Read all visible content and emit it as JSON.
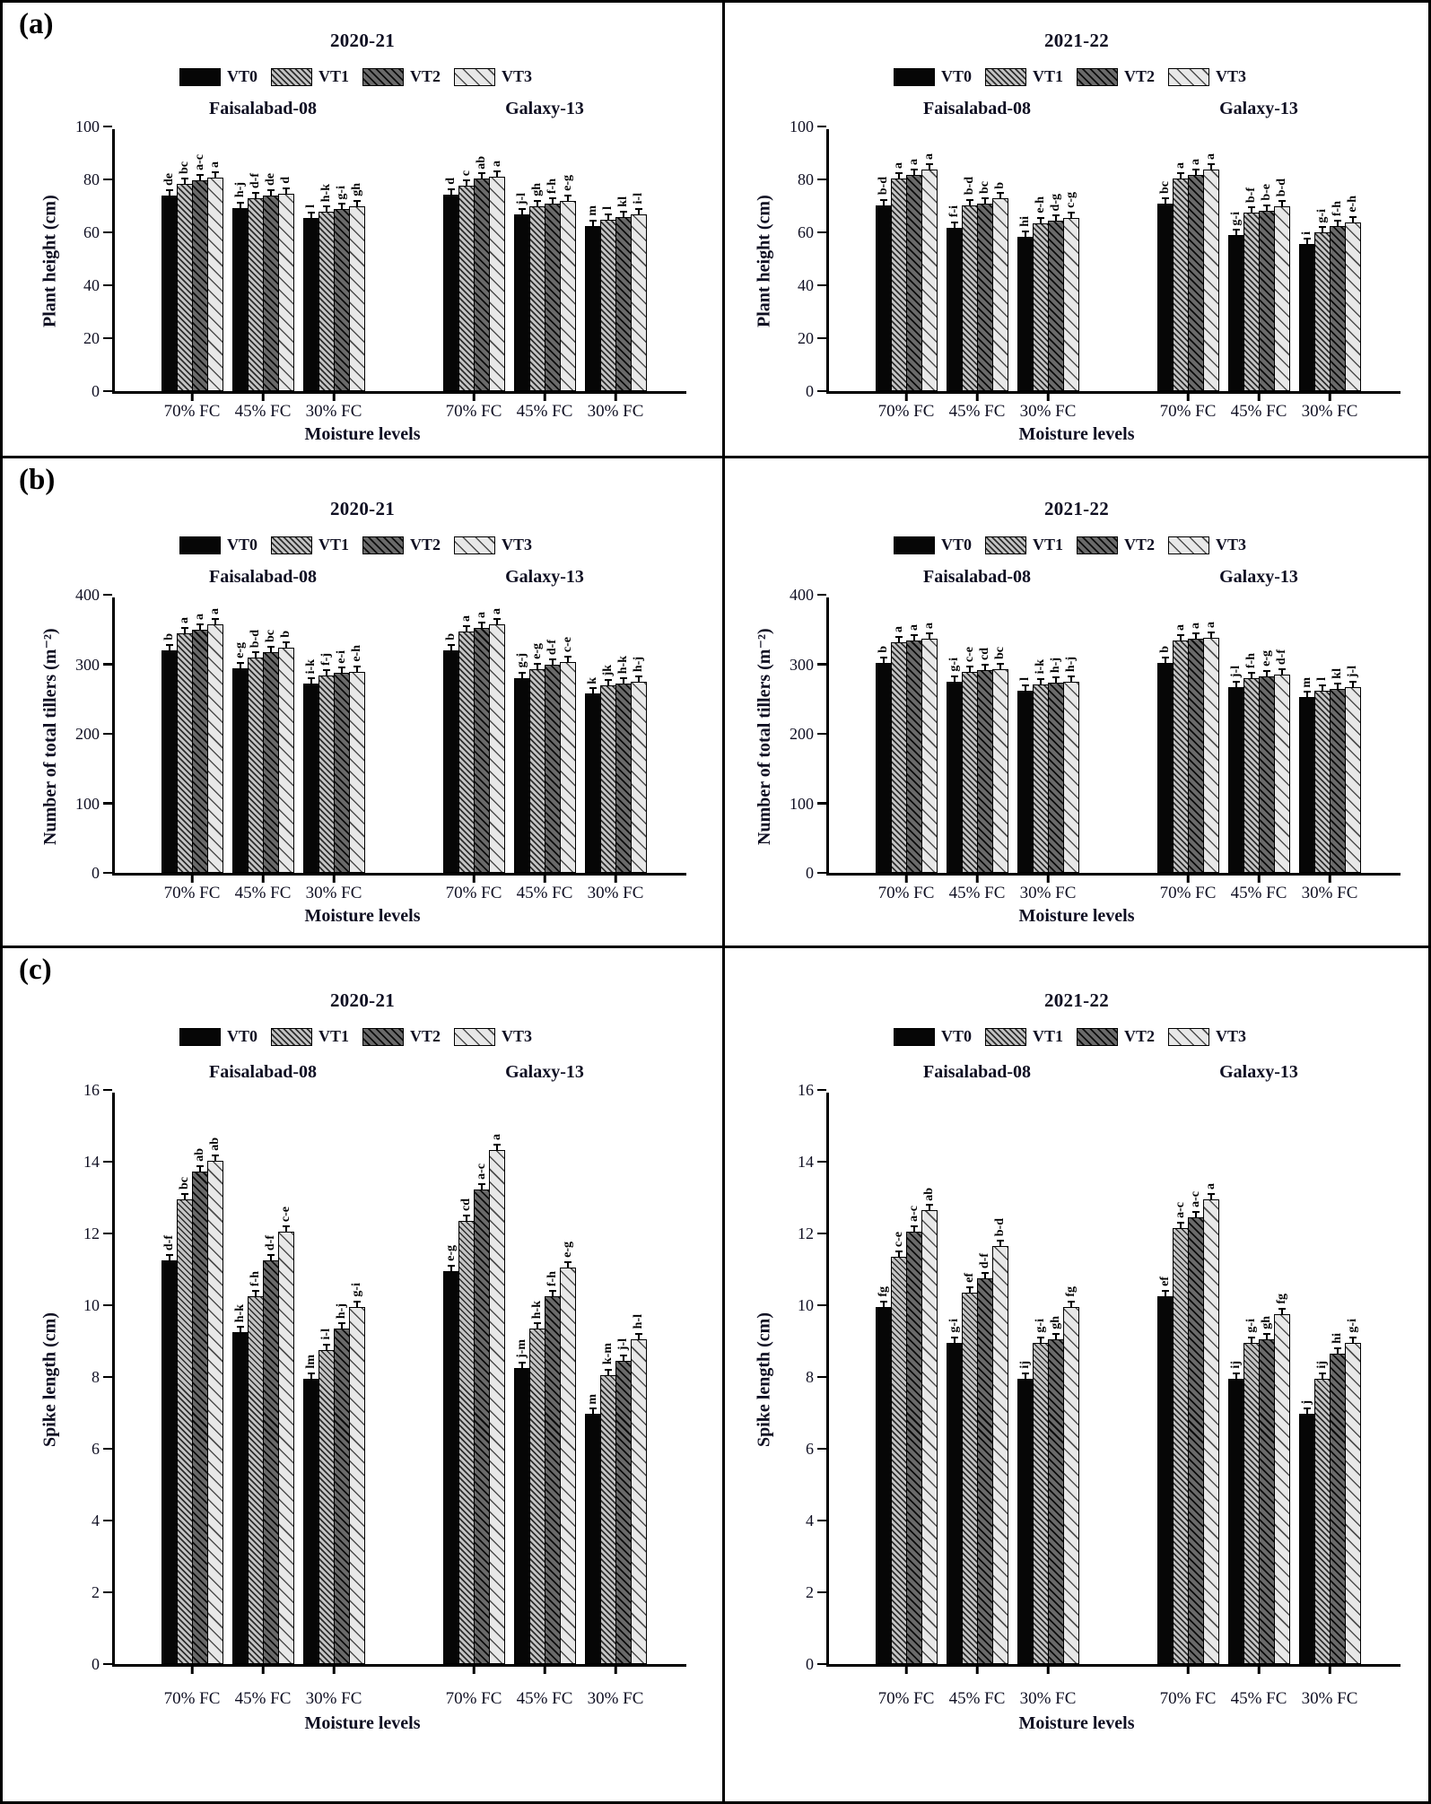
{
  "chart_data": {
    "type": "bar",
    "legend": [
      "VT0",
      "VT1",
      "VT2",
      "VT3"
    ],
    "legend_position": "top-center",
    "x_axis_title": "Moisture levels",
    "moisture_levels": [
      "70% FC",
      "45% FC",
      "30% FC"
    ],
    "cultivar_names": [
      "Faisalabad-08",
      "Galaxy-13"
    ],
    "grid": false,
    "rows": [
      {
        "panel_label": "(a)",
        "y_axis_title": "Plant height (cm)",
        "y_max": 100,
        "y_ticks": [
          0,
          20,
          40,
          60,
          80,
          100
        ],
        "charts": [
          {
            "year": "2020-21",
            "cultivars": [
              {
                "name": "Faisalabad-08",
                "groups": [
                  {
                    "moisture": "70% FC",
                    "values": [
                      74.5,
                      79,
                      80.5,
                      81.5
                    ],
                    "letters": [
                      "de",
                      "bc",
                      "a-c",
                      "a"
                    ]
                  },
                  {
                    "moisture": "45% FC",
                    "values": [
                      70,
                      73.5,
                      74.5,
                      75.5
                    ],
                    "letters": [
                      "h-j",
                      "d-f",
                      "de",
                      "d"
                    ]
                  },
                  {
                    "moisture": "30% FC",
                    "values": [
                      66,
                      68.5,
                      69.5,
                      70.5
                    ],
                    "letters": [
                      "l",
                      "h-k",
                      "g-i",
                      "gh"
                    ]
                  }
                ]
              },
              {
                "name": "Galaxy-13",
                "groups": [
                  {
                    "moisture": "70% FC",
                    "values": [
                      75,
                      78.5,
                      81,
                      82
                    ],
                    "letters": [
                      "d",
                      "c",
                      "ab",
                      "a"
                    ]
                  },
                  {
                    "moisture": "45% FC",
                    "values": [
                      67.5,
                      70.5,
                      71.5,
                      72.5
                    ],
                    "letters": [
                      "j-l",
                      "gh",
                      "f-h",
                      "e-g"
                    ]
                  },
                  {
                    "moisture": "30% FC",
                    "values": [
                      63,
                      65.5,
                      66.5,
                      67.5
                    ],
                    "letters": [
                      "m",
                      "l",
                      "kl",
                      "i-l"
                    ]
                  }
                ]
              }
            ]
          },
          {
            "year": "2021-22",
            "cultivars": [
              {
                "name": "Faisalabad-08",
                "groups": [
                  {
                    "moisture": "70% FC",
                    "values": [
                      71,
                      81,
                      82.5,
                      84.5
                    ],
                    "letters": [
                      "b-d",
                      "a",
                      "a",
                      "a"
                    ]
                  },
                  {
                    "moisture": "45% FC",
                    "values": [
                      62.5,
                      71,
                      71.5,
                      73.5
                    ],
                    "letters": [
                      "f-i",
                      "b-d",
                      "bc",
                      "b"
                    ]
                  },
                  {
                    "moisture": "30% FC",
                    "values": [
                      59,
                      64,
                      65,
                      66
                    ],
                    "letters": [
                      "hi",
                      "e-h",
                      "d-g",
                      "c-g"
                    ]
                  }
                ]
              },
              {
                "name": "Galaxy-13",
                "groups": [
                  {
                    "moisture": "70% FC",
                    "values": [
                      71.5,
                      81,
                      82.5,
                      84.5
                    ],
                    "letters": [
                      "bc",
                      "a",
                      "a",
                      "a"
                    ]
                  },
                  {
                    "moisture": "45% FC",
                    "values": [
                      59.5,
                      68,
                      69,
                      70.5
                    ],
                    "letters": [
                      "g-i",
                      "b-f",
                      "b-e",
                      "b-d"
                    ]
                  },
                  {
                    "moisture": "30% FC",
                    "values": [
                      56,
                      60.5,
                      63,
                      64.5
                    ],
                    "letters": [
                      "i",
                      "g-i",
                      "f-h",
                      "e-h"
                    ]
                  }
                ]
              }
            ]
          }
        ]
      },
      {
        "panel_label": "(b)",
        "y_axis_title": "Number of total tillers (m⁻²)",
        "y_max": 400,
        "y_ticks": [
          0,
          100,
          200,
          300,
          400
        ],
        "charts": [
          {
            "year": "2020-21",
            "cultivars": [
              {
                "name": "Faisalabad-08",
                "groups": [
                  {
                    "moisture": "70% FC",
                    "values": [
                      323,
                      348,
                      353,
                      361
                    ],
                    "letters": [
                      "b",
                      "a",
                      "a",
                      "a"
                    ]
                  },
                  {
                    "moisture": "45% FC",
                    "values": [
                      297,
                      313,
                      320,
                      327
                    ],
                    "letters": [
                      "e-g",
                      "b-d",
                      "bc",
                      "b"
                    ]
                  },
                  {
                    "moisture": "30% FC",
                    "values": [
                      275,
                      287,
                      290,
                      292
                    ],
                    "letters": [
                      "i-k",
                      "f-j",
                      "e-i",
                      "e-h"
                    ]
                  }
                ]
              },
              {
                "name": "Galaxy-13",
                "groups": [
                  {
                    "moisture": "70% FC",
                    "values": [
                      323,
                      350,
                      356,
                      361
                    ],
                    "letters": [
                      "b",
                      "a",
                      "a",
                      "a"
                    ]
                  },
                  {
                    "moisture": "45% FC",
                    "values": [
                      283,
                      296,
                      302,
                      306
                    ],
                    "letters": [
                      "g-j",
                      "e-g",
                      "d-f",
                      "c-e"
                    ]
                  },
                  {
                    "moisture": "30% FC",
                    "values": [
                      260,
                      272,
                      275,
                      278
                    ],
                    "letters": [
                      "k",
                      "jk",
                      "h-k",
                      "h-j"
                    ]
                  }
                ]
              }
            ]
          },
          {
            "year": "2021-22",
            "cultivars": [
              {
                "name": "Faisalabad-08",
                "groups": [
                  {
                    "moisture": "70% FC",
                    "values": [
                      305,
                      335,
                      338,
                      340
                    ],
                    "letters": [
                      "b",
                      "a",
                      "a",
                      "a"
                    ]
                  },
                  {
                    "moisture": "45% FC",
                    "values": [
                      278,
                      292,
                      294,
                      296
                    ],
                    "letters": [
                      "g-i",
                      "c-e",
                      "cd",
                      "bc"
                    ]
                  },
                  {
                    "moisture": "30% FC",
                    "values": [
                      265,
                      274,
                      276,
                      278
                    ],
                    "letters": [
                      "l",
                      "i-k",
                      "h-j",
                      "h-j"
                    ]
                  }
                ]
              },
              {
                "name": "Galaxy-13",
                "groups": [
                  {
                    "moisture": "70% FC",
                    "values": [
                      305,
                      337,
                      340,
                      341
                    ],
                    "letters": [
                      "b",
                      "a",
                      "a",
                      "a"
                    ]
                  },
                  {
                    "moisture": "45% FC",
                    "values": [
                      270,
                      283,
                      286,
                      288
                    ],
                    "letters": [
                      "j-l",
                      "f-h",
                      "e-g",
                      "d-f"
                    ]
                  },
                  {
                    "moisture": "30% FC",
                    "values": [
                      255,
                      265,
                      267,
                      270
                    ],
                    "letters": [
                      "m",
                      "l",
                      "kl",
                      "j-l"
                    ]
                  }
                ]
              }
            ]
          }
        ]
      },
      {
        "panel_label": "(c)",
        "y_axis_title": "Spike length (cm)",
        "y_max": 16,
        "y_ticks": [
          0,
          2,
          4,
          6,
          8,
          10,
          12,
          14,
          16
        ],
        "charts": [
          {
            "year": "2020-21",
            "cultivars": [
              {
                "name": "Faisalabad-08",
                "groups": [
                  {
                    "moisture": "70% FC",
                    "values": [
                      11.3,
                      13.0,
                      13.8,
                      14.1
                    ],
                    "letters": [
                      "d-f",
                      "bc",
                      "ab",
                      "ab"
                    ]
                  },
                  {
                    "moisture": "45% FC",
                    "values": [
                      9.3,
                      10.3,
                      11.3,
                      12.1
                    ],
                    "letters": [
                      "h-k",
                      "f-h",
                      "d-f",
                      "c-e"
                    ]
                  },
                  {
                    "moisture": "30% FC",
                    "values": [
                      8.0,
                      8.8,
                      9.4,
                      10.0
                    ],
                    "letters": [
                      "lm",
                      "i-l",
                      "h-j",
                      "g-i"
                    ]
                  }
                ]
              },
              {
                "name": "Galaxy-13",
                "groups": [
                  {
                    "moisture": "70% FC",
                    "values": [
                      11.0,
                      12.4,
                      13.3,
                      14.4
                    ],
                    "letters": [
                      "e-g",
                      "cd",
                      "a-c",
                      "a"
                    ]
                  },
                  {
                    "moisture": "45% FC",
                    "values": [
                      8.3,
                      9.4,
                      10.3,
                      11.1
                    ],
                    "letters": [
                      "j-m",
                      "h-k",
                      "f-h",
                      "e-g"
                    ]
                  },
                  {
                    "moisture": "30% FC",
                    "values": [
                      7.0,
                      8.1,
                      8.5,
                      9.1
                    ],
                    "letters": [
                      "m",
                      "k-m",
                      "j-l",
                      "h-l"
                    ]
                  }
                ]
              }
            ]
          },
          {
            "year": "2021-22",
            "cultivars": [
              {
                "name": "Faisalabad-08",
                "groups": [
                  {
                    "moisture": "70% FC",
                    "values": [
                      10.0,
                      11.4,
                      12.1,
                      12.7
                    ],
                    "letters": [
                      "fg",
                      "c-e",
                      "a-c",
                      "ab"
                    ]
                  },
                  {
                    "moisture": "45% FC",
                    "values": [
                      9.0,
                      10.4,
                      10.8,
                      11.7
                    ],
                    "letters": [
                      "g-i",
                      "ef",
                      "d-f",
                      "b-d"
                    ]
                  },
                  {
                    "moisture": "30% FC",
                    "values": [
                      8.0,
                      9.0,
                      9.1,
                      10.0
                    ],
                    "letters": [
                      "ij",
                      "g-i",
                      "gh",
                      "fg"
                    ]
                  }
                ]
              },
              {
                "name": "Galaxy-13",
                "groups": [
                  {
                    "moisture": "70% FC",
                    "values": [
                      10.3,
                      12.2,
                      12.5,
                      13.0
                    ],
                    "letters": [
                      "ef",
                      "a-c",
                      "a-c",
                      "a"
                    ]
                  },
                  {
                    "moisture": "45% FC",
                    "values": [
                      8.0,
                      9.0,
                      9.1,
                      9.8
                    ],
                    "letters": [
                      "ij",
                      "g-i",
                      "gh",
                      "fg"
                    ]
                  },
                  {
                    "moisture": "30% FC",
                    "values": [
                      7.0,
                      8.0,
                      8.7,
                      9.0
                    ],
                    "letters": [
                      "j",
                      "ij",
                      "hi",
                      "g-i"
                    ]
                  }
                ]
              }
            ]
          }
        ]
      }
    ],
    "colors": {
      "vt0_fill": "#060606",
      "vt1_bg": "#c4c4c4",
      "vt2_bg": "#6a6a6a",
      "vt3_bg": "#e8e8e8",
      "hatch_line": "#1a1a1a",
      "axis": "#000000",
      "text": "#0f0f22"
    }
  }
}
